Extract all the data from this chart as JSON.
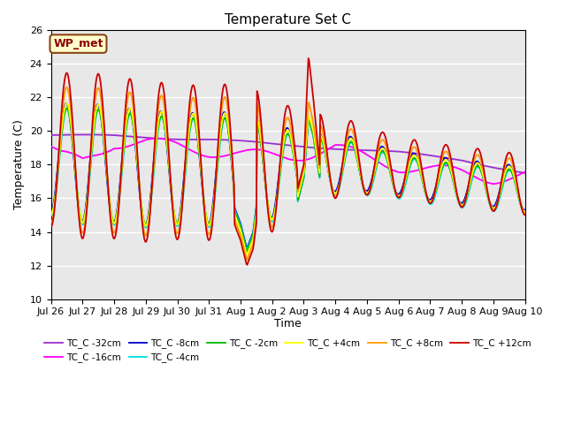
{
  "title": "Temperature Set C",
  "xlabel": "Time",
  "ylabel": "Temperature (C)",
  "ylim": [
    10,
    26
  ],
  "yticks": [
    10,
    12,
    14,
    16,
    18,
    20,
    22,
    24,
    26
  ],
  "background_color": "#e8e8e8",
  "legend_label": "WP_met",
  "series_colors": {
    "TC_C -32cm": "#9b30d0",
    "TC_C -16cm": "#ff00ff",
    "TC_C -8cm": "#0000cc",
    "TC_C -4cm": "#00dddd",
    "TC_C -2cm": "#00bb00",
    "TC_C +4cm": "#ffff00",
    "TC_C +8cm": "#ff9900",
    "TC_C +12cm": "#cc0000"
  },
  "xtick_labels": [
    "Jul 26",
    "Jul 27",
    "Jul 28",
    "Jul 29",
    "Jul 30",
    "Jul 31",
    "Aug 1",
    "Aug 2",
    "Aug 3",
    "Aug 4",
    "Aug 5",
    "Aug 6",
    "Aug 7",
    "Aug 8",
    "Aug 9",
    "Aug 10"
  ],
  "n_points": 721
}
